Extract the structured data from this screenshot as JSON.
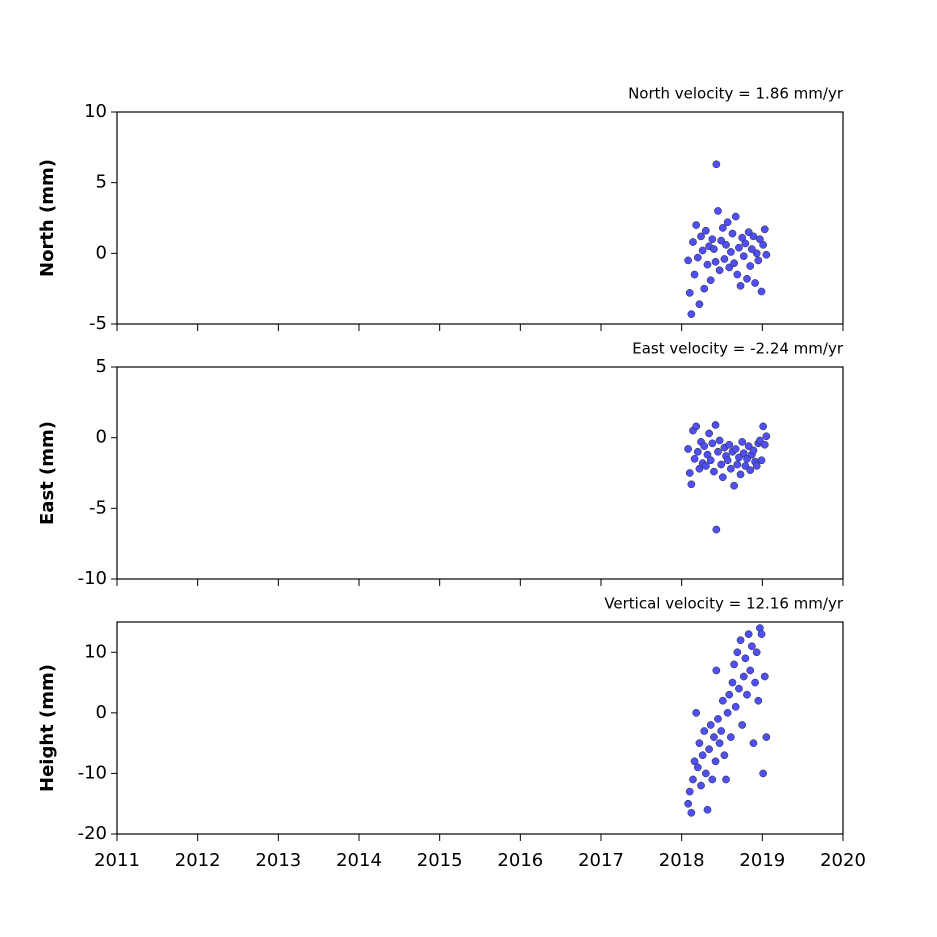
{
  "chart_data": [
    {
      "type": "scatter",
      "title": "North velocity = 1.86 mm/yr",
      "ylabel": "North (mm)",
      "color": "#4f4ff5",
      "x": [
        2018.08,
        2018.1,
        2018.12,
        2018.14,
        2018.16,
        2018.18,
        2018.2,
        2018.22,
        2018.24,
        2018.26,
        2018.28,
        2018.3,
        2018.32,
        2018.34,
        2018.36,
        2018.38,
        2018.4,
        2018.42,
        2018.43,
        2018.45,
        2018.47,
        2018.49,
        2018.51,
        2018.53,
        2018.55,
        2018.57,
        2018.59,
        2018.61,
        2018.63,
        2018.65,
        2018.67,
        2018.69,
        2018.71,
        2018.73,
        2018.75,
        2018.77,
        2018.79,
        2018.81,
        2018.83,
        2018.85,
        2018.87,
        2018.89,
        2018.91,
        2018.93,
        2018.95,
        2018.97,
        2018.99,
        2019.01,
        2019.03,
        2019.05
      ],
      "values": [
        -0.5,
        -2.8,
        -4.3,
        0.8,
        -1.5,
        2.0,
        -0.3,
        -3.6,
        1.2,
        0.2,
        -2.5,
        1.6,
        -0.8,
        0.5,
        -1.9,
        1.0,
        0.3,
        -0.6,
        6.3,
        3.0,
        -1.2,
        0.9,
        1.8,
        -0.4,
        0.6,
        2.2,
        -1.0,
        0.1,
        1.4,
        -0.7,
        2.6,
        -1.5,
        0.4,
        -2.3,
        1.1,
        -0.2,
        0.7,
        -1.8,
        1.5,
        -0.9,
        0.3,
        1.2,
        -2.1,
        0.0,
        -0.5,
        1.0,
        -2.7,
        0.6,
        1.7,
        -0.1
      ],
      "xlim": [
        2011,
        2020
      ],
      "xticks": [
        2011,
        2012,
        2013,
        2014,
        2015,
        2016,
        2017,
        2018,
        2019,
        2020
      ],
      "ylim": [
        -5,
        10
      ],
      "yticks": [
        -5,
        0,
        5,
        10
      ]
    },
    {
      "type": "scatter",
      "title": "East velocity = -2.24 mm/yr",
      "ylabel": "East (mm)",
      "color": "#4f4ff5",
      "x": [
        2018.08,
        2018.1,
        2018.12,
        2018.14,
        2018.16,
        2018.18,
        2018.2,
        2018.22,
        2018.24,
        2018.26,
        2018.28,
        2018.3,
        2018.32,
        2018.34,
        2018.36,
        2018.38,
        2018.4,
        2018.42,
        2018.43,
        2018.45,
        2018.47,
        2018.49,
        2018.51,
        2018.53,
        2018.55,
        2018.57,
        2018.59,
        2018.61,
        2018.63,
        2018.65,
        2018.67,
        2018.69,
        2018.71,
        2018.73,
        2018.75,
        2018.77,
        2018.79,
        2018.81,
        2018.83,
        2018.85,
        2018.87,
        2018.89,
        2018.91,
        2018.93,
        2018.95,
        2018.97,
        2018.99,
        2019.01,
        2019.03,
        2019.05
      ],
      "values": [
        -0.8,
        -2.5,
        -3.3,
        0.5,
        -1.5,
        0.8,
        -1.0,
        -2.2,
        -0.3,
        -1.8,
        -0.6,
        -2.0,
        -1.2,
        0.3,
        -1.6,
        -0.4,
        -2.4,
        0.9,
        -6.5,
        -1.0,
        -0.2,
        -1.9,
        -2.8,
        -0.7,
        -1.3,
        -1.6,
        -0.5,
        -2.2,
        -1.0,
        -3.4,
        -0.8,
        -1.9,
        -1.4,
        -2.6,
        -0.3,
        -1.1,
        -2.0,
        -1.5,
        -0.6,
        -2.3,
        -1.2,
        -0.9,
        -1.7,
        -2.0,
        -0.4,
        -0.2,
        -1.6,
        0.8,
        -0.5,
        0.1
      ],
      "xlim": [
        2011,
        2020
      ],
      "xticks": [
        2011,
        2012,
        2013,
        2014,
        2015,
        2016,
        2017,
        2018,
        2019,
        2020
      ],
      "ylim": [
        -10,
        5
      ],
      "yticks": [
        -10,
        -5,
        0,
        5
      ]
    },
    {
      "type": "scatter",
      "title": "Vertical velocity = 12.16 mm/yr",
      "ylabel": "Height (mm)",
      "color": "#4f4ff5",
      "x": [
        2018.08,
        2018.1,
        2018.12,
        2018.14,
        2018.16,
        2018.18,
        2018.2,
        2018.22,
        2018.24,
        2018.26,
        2018.28,
        2018.3,
        2018.32,
        2018.34,
        2018.36,
        2018.38,
        2018.4,
        2018.42,
        2018.43,
        2018.45,
        2018.47,
        2018.49,
        2018.51,
        2018.53,
        2018.55,
        2018.57,
        2018.59,
        2018.61,
        2018.63,
        2018.65,
        2018.67,
        2018.69,
        2018.71,
        2018.73,
        2018.75,
        2018.77,
        2018.79,
        2018.81,
        2018.83,
        2018.85,
        2018.87,
        2018.89,
        2018.91,
        2018.93,
        2018.95,
        2018.97,
        2018.99,
        2019.01,
        2019.03,
        2019.05
      ],
      "values": [
        -15,
        -13,
        -16.5,
        -11,
        -8,
        0,
        -9,
        -5,
        -12,
        -7,
        -3,
        -10,
        -16,
        -6,
        -2,
        -11,
        -4,
        -8,
        7,
        -1,
        -5,
        -3,
        2,
        -7,
        -11,
        0,
        3,
        -4,
        5,
        8,
        1,
        10,
        4,
        12,
        -2,
        6,
        9,
        3,
        13,
        7,
        11,
        -5,
        5,
        10,
        2,
        14,
        13,
        -10,
        6,
        -4
      ],
      "xlim": [
        2011,
        2020
      ],
      "xticks": [
        2011,
        2012,
        2013,
        2014,
        2015,
        2016,
        2017,
        2018,
        2019,
        2020
      ],
      "ylim": [
        -20,
        15
      ],
      "yticks": [
        -20,
        -10,
        0,
        10
      ]
    }
  ]
}
